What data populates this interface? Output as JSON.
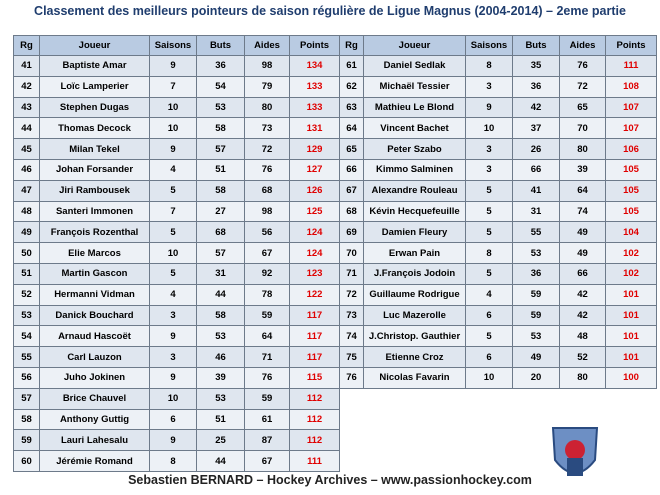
{
  "title": "Classement des meilleurs pointeurs de saison régulière de  Ligue Magnus (2004-2014)  – 2eme partie",
  "columns": [
    "Rg",
    "Joueur",
    "Saisons",
    "Buts",
    "Aides",
    "Points"
  ],
  "tables": [
    {
      "rows": [
        [
          41,
          "Baptiste Amar",
          9,
          36,
          98,
          134
        ],
        [
          42,
          "Loïc Lamperier",
          7,
          54,
          79,
          133
        ],
        [
          43,
          "Stephen Dugas",
          10,
          53,
          80,
          133
        ],
        [
          44,
          "Thomas Decock",
          10,
          58,
          73,
          131
        ],
        [
          45,
          "Milan Tekel",
          9,
          57,
          72,
          129
        ],
        [
          46,
          "Johan Forsander",
          4,
          51,
          76,
          127
        ],
        [
          47,
          "Jiri Rambousek",
          5,
          58,
          68,
          126
        ],
        [
          48,
          "Santeri Immonen",
          7,
          27,
          98,
          125
        ],
        [
          49,
          "François Rozenthal",
          5,
          68,
          56,
          124
        ],
        [
          50,
          "Elie Marcos",
          10,
          57,
          67,
          124
        ],
        [
          51,
          "Martin Gascon",
          5,
          31,
          92,
          123
        ],
        [
          52,
          "Hermanni Vidman",
          4,
          44,
          78,
          122
        ],
        [
          53,
          "Danick Bouchard",
          3,
          58,
          59,
          117
        ],
        [
          54,
          "Arnaud Hascoët",
          9,
          53,
          64,
          117
        ],
        [
          55,
          "Carl Lauzon",
          3,
          46,
          71,
          117
        ],
        [
          56,
          "Juho Jokinen",
          9,
          39,
          76,
          115
        ],
        [
          57,
          "Brice Chauvel",
          10,
          53,
          59,
          112
        ],
        [
          58,
          "Anthony Guttig",
          6,
          51,
          61,
          112
        ],
        [
          59,
          "Lauri Lahesalu",
          9,
          25,
          87,
          112
        ],
        [
          60,
          "Jérémie Romand",
          8,
          44,
          67,
          111
        ]
      ]
    },
    {
      "rows": [
        [
          61,
          "Daniel Sedlak",
          8,
          35,
          76,
          111
        ],
        [
          62,
          "Michaël Tessier",
          3,
          36,
          72,
          108
        ],
        [
          63,
          "Mathieu Le Blond",
          9,
          42,
          65,
          107
        ],
        [
          64,
          "Vincent Bachet",
          10,
          37,
          70,
          107
        ],
        [
          65,
          "Peter Szabo",
          3,
          26,
          80,
          106
        ],
        [
          66,
          "Kimmo Salminen",
          3,
          66,
          39,
          105
        ],
        [
          67,
          "Alexandre Rouleau",
          5,
          41,
          64,
          105
        ],
        [
          68,
          "Kévin Hecquefeuille",
          5,
          31,
          74,
          105
        ],
        [
          69,
          "Damien Fleury",
          5,
          55,
          49,
          104
        ],
        [
          70,
          "Erwan Pain",
          8,
          53,
          49,
          102
        ],
        [
          71,
          "J.François Jodoin",
          5,
          36,
          66,
          102
        ],
        [
          72,
          "Guillaume Rodrigue",
          4,
          59,
          42,
          101
        ],
        [
          73,
          "Luc Mazerolle",
          6,
          59,
          42,
          101
        ],
        [
          74,
          "J.Christop. Gauthier",
          5,
          53,
          48,
          101
        ],
        [
          75,
          "Etienne Croz",
          6,
          49,
          52,
          101
        ],
        [
          76,
          "Nicolas Favarin",
          10,
          20,
          80,
          100
        ]
      ]
    }
  ],
  "footer": "Sebastien BERNARD – Hockey Archives – www.passionhockey.com"
}
